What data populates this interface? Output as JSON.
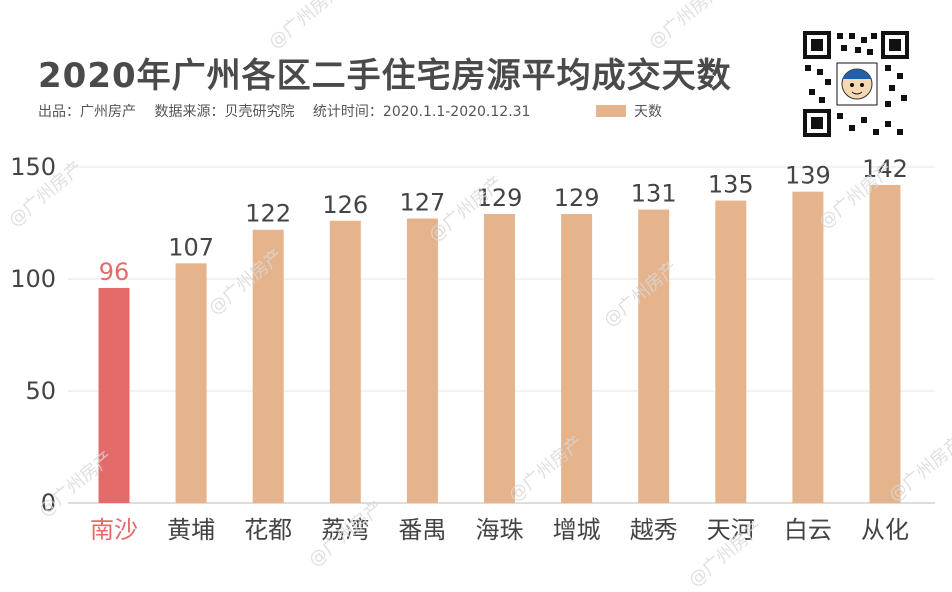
{
  "title": "2020年广州各区二手住宅房源平均成交天数",
  "subtitle": {
    "producer": "出品：广州房产",
    "source": "数据来源：贝壳研究院",
    "period": "统计时间：2020.1.1-2020.12.31"
  },
  "watermark": "@广州房产",
  "colors": {
    "highlight": "#e36b6a",
    "bar": "#e6b48c",
    "grid": "#e6e6e6",
    "highlight_label": "#e36b6a"
  },
  "chart_data": {
    "type": "bar",
    "categories": [
      "南沙",
      "黄埔",
      "花都",
      "荔湾",
      "番禺",
      "海珠",
      "增城",
      "越秀",
      "天河",
      "白云",
      "从化"
    ],
    "series": [
      {
        "name": "天数",
        "values": [
          96,
          107,
          122,
          126,
          127,
          129,
          129,
          131,
          135,
          139,
          142
        ]
      }
    ],
    "highlight_index": 0,
    "yticks": [
      0,
      50,
      100,
      150
    ],
    "ylim": [
      0,
      150
    ],
    "grid": true,
    "legend": "top"
  }
}
